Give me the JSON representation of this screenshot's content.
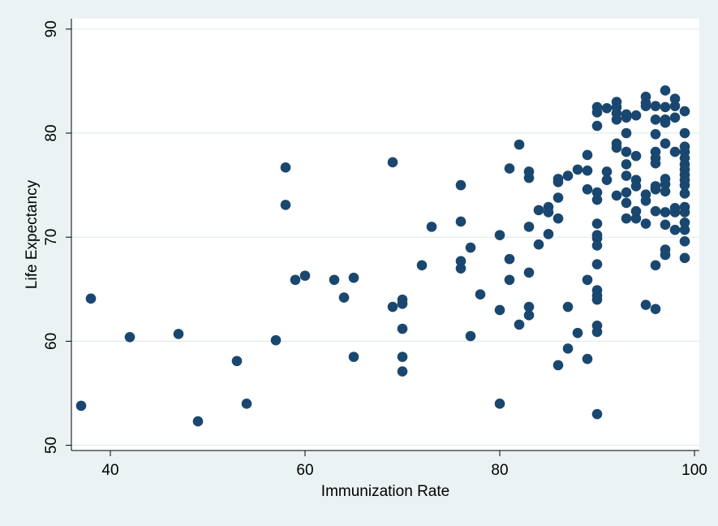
{
  "chart_data": {
    "type": "scatter",
    "title": "",
    "xlabel": "Immunization Rate",
    "ylabel": "Life Expectancy",
    "xlim": [
      36,
      100.5
    ],
    "ylim": [
      49.5,
      91
    ],
    "xticks": [
      40,
      60,
      80,
      100
    ],
    "yticks": [
      50,
      60,
      70,
      80,
      90
    ],
    "grid": "horizontal",
    "colors": {
      "background": "#eaf2f3",
      "plot_area": "#ffffff",
      "gridline": "#e2ecee",
      "marker": "#1a476f",
      "axis": "#000000"
    },
    "points": [
      [
        37,
        53.8
      ],
      [
        38,
        64.1
      ],
      [
        42,
        60.4
      ],
      [
        47,
        60.7
      ],
      [
        49,
        52.3
      ],
      [
        53,
        58.1
      ],
      [
        54,
        54.0
      ],
      [
        57,
        60.1
      ],
      [
        58,
        76.7
      ],
      [
        58,
        73.1
      ],
      [
        59,
        65.9
      ],
      [
        60,
        66.3
      ],
      [
        63,
        65.9
      ],
      [
        64,
        64.2
      ],
      [
        65,
        66.1
      ],
      [
        65,
        58.5
      ],
      [
        69,
        77.2
      ],
      [
        69,
        63.3
      ],
      [
        70,
        64.0
      ],
      [
        70,
        63.6
      ],
      [
        70,
        61.2
      ],
      [
        70,
        58.5
      ],
      [
        70,
        57.1
      ],
      [
        72,
        67.3
      ],
      [
        73,
        71.0
      ],
      [
        76,
        75.0
      ],
      [
        76,
        71.5
      ],
      [
        76,
        67.7
      ],
      [
        76,
        67.0
      ],
      [
        77,
        69.0
      ],
      [
        77,
        60.5
      ],
      [
        78,
        64.5
      ],
      [
        80,
        70.2
      ],
      [
        80,
        63.0
      ],
      [
        80,
        54.0
      ],
      [
        81,
        76.6
      ],
      [
        81,
        67.9
      ],
      [
        81,
        65.9
      ],
      [
        82,
        78.9
      ],
      [
        82,
        61.6
      ],
      [
        83,
        76.3
      ],
      [
        83,
        75.7
      ],
      [
        83,
        71.0
      ],
      [
        83,
        66.6
      ],
      [
        83,
        63.3
      ],
      [
        83,
        62.5
      ],
      [
        84,
        72.6
      ],
      [
        84,
        69.3
      ],
      [
        85,
        72.9
      ],
      [
        85,
        72.4
      ],
      [
        85,
        70.3
      ],
      [
        86,
        75.6
      ],
      [
        86,
        75.3
      ],
      [
        86,
        73.8
      ],
      [
        86,
        71.8
      ],
      [
        86,
        57.7
      ],
      [
        87,
        75.9
      ],
      [
        87,
        63.3
      ],
      [
        87,
        59.3
      ],
      [
        88,
        76.5
      ],
      [
        88,
        60.8
      ],
      [
        89,
        77.9
      ],
      [
        89,
        76.4
      ],
      [
        89,
        74.6
      ],
      [
        89,
        65.9
      ],
      [
        89,
        58.3
      ],
      [
        90,
        82.5
      ],
      [
        90,
        82.0
      ],
      [
        90,
        80.7
      ],
      [
        90,
        74.3
      ],
      [
        90,
        73.6
      ],
      [
        90,
        71.3
      ],
      [
        90,
        70.2
      ],
      [
        90,
        69.9
      ],
      [
        90,
        69.2
      ],
      [
        90,
        67.4
      ],
      [
        90,
        64.9
      ],
      [
        90,
        64.4
      ],
      [
        90,
        64.0
      ],
      [
        90,
        61.5
      ],
      [
        90,
        60.9
      ],
      [
        90,
        53.0
      ],
      [
        91,
        82.4
      ],
      [
        91,
        76.3
      ],
      [
        91,
        75.5
      ],
      [
        92,
        83.0
      ],
      [
        92,
        82.5
      ],
      [
        92,
        81.9
      ],
      [
        92,
        81.3
      ],
      [
        92,
        79.0
      ],
      [
        92,
        78.6
      ],
      [
        92,
        74.0
      ],
      [
        93,
        81.8
      ],
      [
        93,
        81.5
      ],
      [
        93,
        80.0
      ],
      [
        93,
        78.2
      ],
      [
        93,
        77.0
      ],
      [
        93,
        75.9
      ],
      [
        93,
        74.3
      ],
      [
        93,
        73.3
      ],
      [
        93,
        71.8
      ],
      [
        94,
        81.7
      ],
      [
        94,
        77.8
      ],
      [
        94,
        75.5
      ],
      [
        94,
        74.9
      ],
      [
        94,
        72.5
      ],
      [
        94,
        71.8
      ],
      [
        95,
        83.5
      ],
      [
        95,
        82.9
      ],
      [
        95,
        82.6
      ],
      [
        95,
        74.1
      ],
      [
        95,
        73.5
      ],
      [
        95,
        71.3
      ],
      [
        95,
        63.5
      ],
      [
        96,
        82.6
      ],
      [
        96,
        81.3
      ],
      [
        96,
        79.9
      ],
      [
        96,
        78.2
      ],
      [
        96,
        77.6
      ],
      [
        96,
        77.1
      ],
      [
        96,
        74.9
      ],
      [
        96,
        74.6
      ],
      [
        96,
        72.5
      ],
      [
        96,
        67.3
      ],
      [
        96,
        63.1
      ],
      [
        97,
        84.1
      ],
      [
        97,
        82.5
      ],
      [
        97,
        81.3
      ],
      [
        97,
        81.0
      ],
      [
        97,
        79.0
      ],
      [
        97,
        75.6
      ],
      [
        97,
        75.1
      ],
      [
        97,
        74.4
      ],
      [
        97,
        72.4
      ],
      [
        97,
        71.2
      ],
      [
        97,
        68.8
      ],
      [
        97,
        68.3
      ],
      [
        98,
        83.3
      ],
      [
        98,
        82.6
      ],
      [
        98,
        81.5
      ],
      [
        98,
        78.2
      ],
      [
        98,
        72.8
      ],
      [
        98,
        72.4
      ],
      [
        98,
        70.7
      ],
      [
        99,
        82.1
      ],
      [
        99,
        80.0
      ],
      [
        99,
        78.7
      ],
      [
        99,
        78.2
      ],
      [
        99,
        77.6
      ],
      [
        99,
        77.0
      ],
      [
        99,
        76.5
      ],
      [
        99,
        76.0
      ],
      [
        99,
        75.5
      ],
      [
        99,
        75.0
      ],
      [
        99,
        74.2
      ],
      [
        99,
        72.9
      ],
      [
        99,
        72.4
      ],
      [
        99,
        71.4
      ],
      [
        99,
        70.7
      ],
      [
        99,
        69.6
      ],
      [
        99,
        68.0
      ]
    ]
  }
}
